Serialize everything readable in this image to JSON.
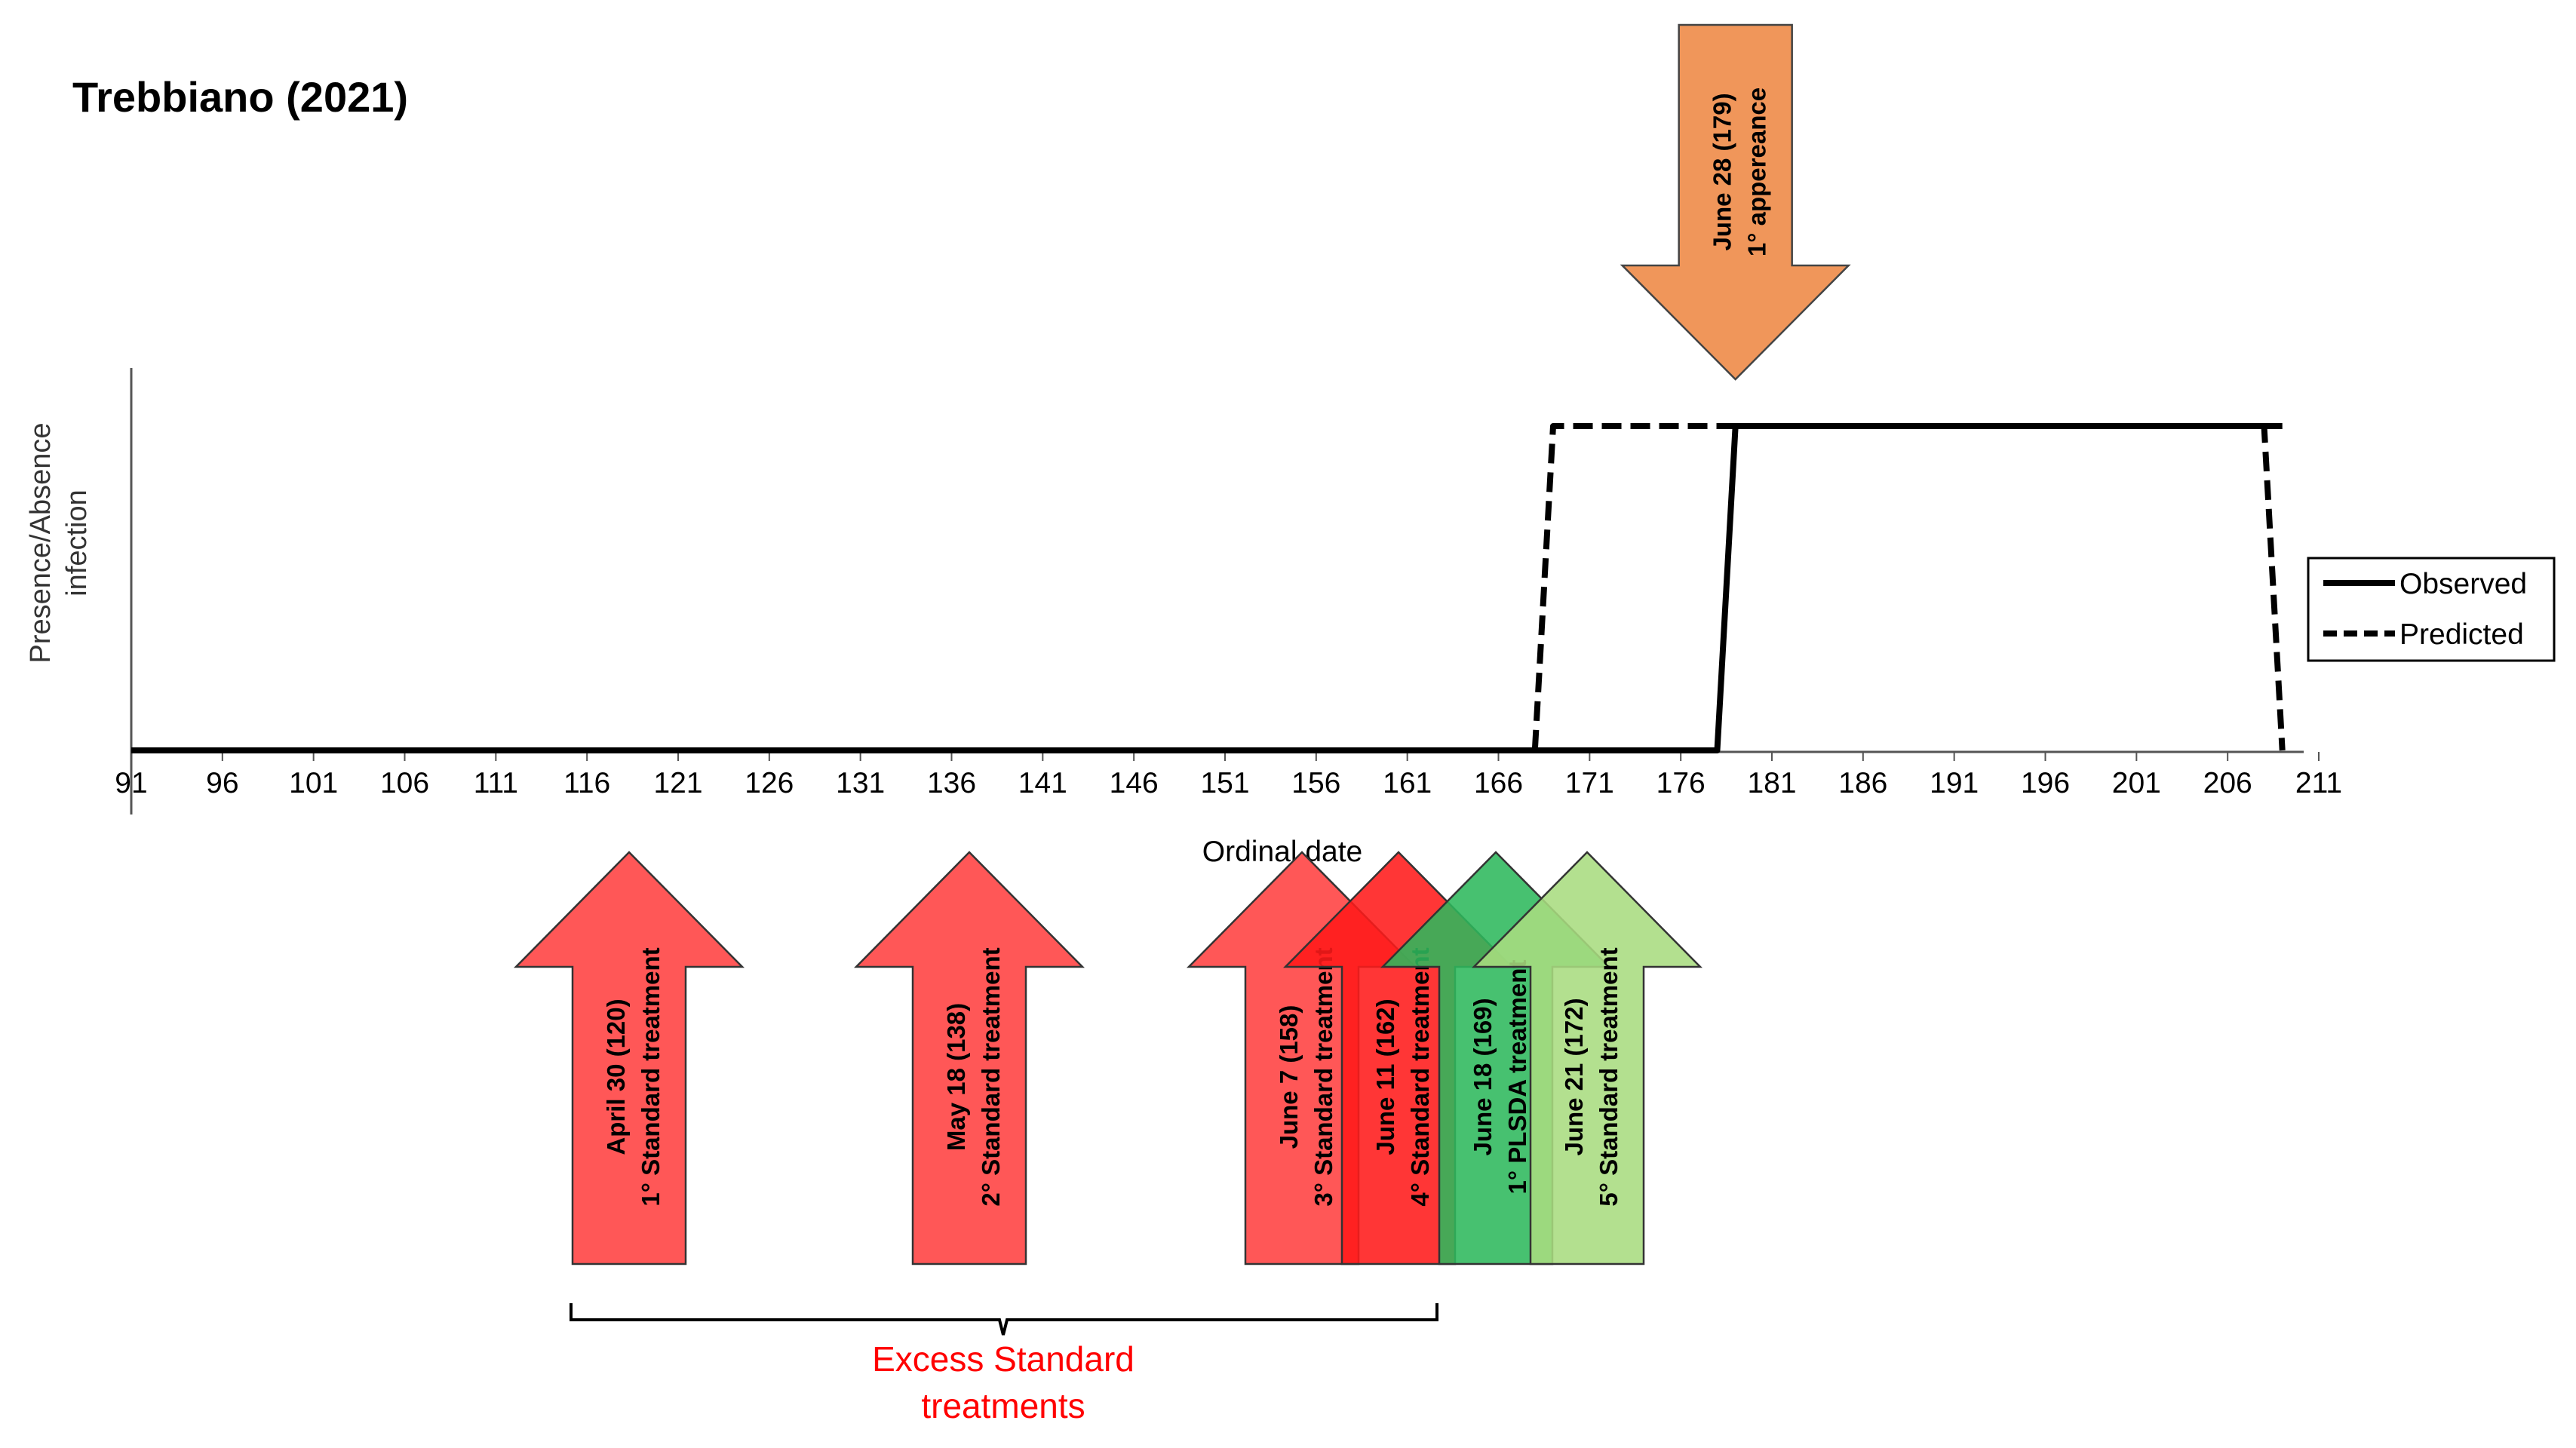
{
  "chart_data": {
    "type": "line",
    "title": "Trebbiano (2021)",
    "xlabel": "Ordinal date",
    "ylabel": [
      "Presence/Absence",
      "infection"
    ],
    "xlim": [
      91,
      211
    ],
    "ylim": [
      0,
      1
    ],
    "xticks": [
      "91",
      "96",
      "101",
      "106",
      "111",
      "116",
      "121",
      "126",
      "131",
      "136",
      "141",
      "146",
      "151",
      "156",
      "161",
      "166",
      "171",
      "176",
      "181",
      "186",
      "191",
      "196",
      "201",
      "206",
      "211"
    ],
    "legend_position": "right",
    "grid": false,
    "series": [
      {
        "name": "Observed",
        "style": "solid",
        "x": [
          91,
          178,
          179,
          209
        ],
        "y": [
          0,
          0,
          1,
          1
        ]
      },
      {
        "name": "Predicted",
        "style": "dashed",
        "x": [
          91,
          168,
          169,
          208,
          209
        ],
        "y": [
          0,
          0,
          1,
          1,
          0
        ]
      }
    ]
  },
  "top_annotation": {
    "line1": "June 28 (179)",
    "line2": "1°  appereance",
    "day": 179,
    "color": "#f0965a"
  },
  "treatments": [
    {
      "line1": "April 30 (120)",
      "line2": "1°  Standard treatment",
      "day": 120,
      "color": "#ff4040"
    },
    {
      "line1": "May 18 (138)",
      "line2": "2°  Standard treatment",
      "day": 138,
      "color": "#ff4040"
    },
    {
      "line1": "June 7 (158)",
      "line2": "3°  Standard treatment",
      "day": 158,
      "color": "#ff4040"
    },
    {
      "line1": "June 11 (162)",
      "line2": "4°  Standard treatment",
      "day": 162,
      "color": "#ff1a1a"
    },
    {
      "line1": "June 18 (169)",
      "line2": "1°  PLSDA treatment",
      "day": 169,
      "color": "#2eb85c"
    },
    {
      "line1": "June 21 (172)",
      "line2": "5°  Standard treatment",
      "day": 172,
      "color": "#a8dc80"
    }
  ],
  "brace_label": [
    "Excess Standard",
    "treatments"
  ],
  "colors": {
    "brace_label": "#ff0000",
    "line": "#000000"
  }
}
